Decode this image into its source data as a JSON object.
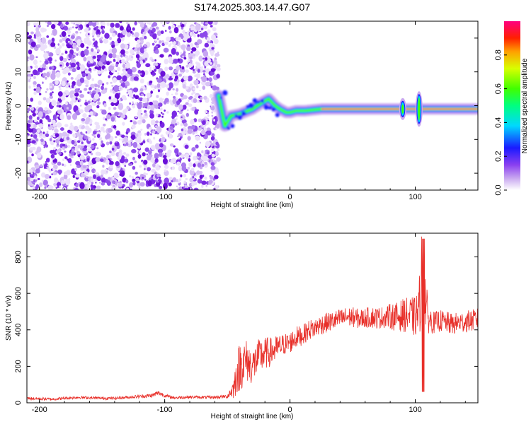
{
  "title": "S174.2025.303.14.47.G07",
  "chart_data": [
    {
      "type": "heatmap",
      "name": "spectrogram",
      "xlabel": "Height of straight line (km)",
      "ylabel": "Frequency (Hz)",
      "xlim": [
        -210,
        150
      ],
      "ylim": [
        -25,
        25
      ],
      "xticks": [
        -200,
        -100,
        0,
        100
      ],
      "xtick_labels": [
        "-200",
        "-100",
        "0",
        "100"
      ],
      "yticks": [
        -20,
        -10,
        0,
        10,
        20
      ],
      "ytick_labels": [
        "-20",
        "-10",
        "0",
        "10",
        "20"
      ],
      "noise_region_x": [
        -210,
        -57
      ],
      "signal_track": [
        {
          "x": -57,
          "y": 3
        },
        {
          "x": -52,
          "y": -6
        },
        {
          "x": -47,
          "y": -3
        },
        {
          "x": -40,
          "y": -2.5
        },
        {
          "x": -30,
          "y": -1
        },
        {
          "x": -22,
          "y": 1
        },
        {
          "x": -17,
          "y": 2
        },
        {
          "x": -12,
          "y": 0
        },
        {
          "x": -8,
          "y": -1
        },
        {
          "x": -3,
          "y": -2
        },
        {
          "x": 0,
          "y": -2
        },
        {
          "x": 5,
          "y": -1.5
        },
        {
          "x": 12,
          "y": -1.5
        },
        {
          "x": 25,
          "y": -1
        },
        {
          "x": 150,
          "y": -1
        }
      ],
      "spikes": [
        {
          "x": 90,
          "y": -1,
          "halfspread": 2
        },
        {
          "x": 103,
          "y": -1,
          "halfspread": 4
        }
      ],
      "colorbar": {
        "label": "Normalized spectral amplitude",
        "ticks": [
          0.0,
          0.2,
          0.4,
          0.6,
          0.8
        ],
        "tick_labels": [
          "0.0",
          "0.2",
          "0.4",
          "0.6",
          "0.8"
        ],
        "range": [
          0,
          1
        ]
      }
    },
    {
      "type": "line",
      "name": "snr",
      "xlabel": "Height of straight line (km)",
      "ylabel": "SNR (10 * v/v)",
      "xlim": [
        -210,
        150
      ],
      "ylim": [
        0,
        930
      ],
      "xticks": [
        -200,
        -100,
        0,
        100
      ],
      "xtick_labels": [
        "-200",
        "-100",
        "0",
        "100"
      ],
      "yticks": [
        0,
        200,
        400,
        600,
        800
      ],
      "ytick_labels": [
        "0",
        "200",
        "400",
        "600",
        "800"
      ],
      "series": [
        {
          "name": "SNR",
          "color": "#e8302a",
          "x": [
            -210,
            -200,
            -190,
            -180,
            -170,
            -160,
            -150,
            -140,
            -130,
            -120,
            -110,
            -105,
            -100,
            -95,
            -90,
            -80,
            -70,
            -60,
            -50,
            -45,
            -42,
            -40,
            -35,
            -30,
            -25,
            -20,
            -15,
            -10,
            -5,
            0,
            5,
            10,
            15,
            20,
            25,
            30,
            35,
            40,
            45,
            50,
            55,
            60,
            65,
            70,
            75,
            80,
            85,
            90,
            95,
            100,
            103,
            105,
            107,
            108,
            110,
            115,
            120,
            125,
            130,
            135,
            140,
            145,
            150
          ],
          "y": [
            25,
            22,
            20,
            25,
            30,
            28,
            25,
            25,
            30,
            35,
            40,
            55,
            40,
            30,
            28,
            32,
            30,
            30,
            35,
            80,
            170,
            200,
            230,
            200,
            250,
            270,
            280,
            300,
            320,
            330,
            360,
            370,
            400,
            410,
            430,
            440,
            450,
            460,
            470,
            470,
            460,
            465,
            470,
            465,
            470,
            475,
            470,
            480,
            480,
            470,
            500,
            700,
            150,
            600,
            460,
            440,
            450,
            440,
            430,
            440,
            445,
            450,
            460
          ],
          "noise_amplitude": [
            8,
            8,
            8,
            8,
            8,
            8,
            8,
            8,
            8,
            10,
            12,
            14,
            10,
            8,
            8,
            8,
            8,
            8,
            10,
            60,
            120,
            140,
            120,
            100,
            100,
            90,
            80,
            70,
            60,
            60,
            60,
            55,
            55,
            55,
            55,
            55,
            55,
            55,
            55,
            55,
            55,
            55,
            60,
            60,
            60,
            70,
            80,
            90,
            100,
            110,
            150,
            250,
            150,
            200,
            80,
            60,
            60,
            60,
            60,
            60,
            60,
            60,
            60
          ]
        }
      ]
    }
  ]
}
